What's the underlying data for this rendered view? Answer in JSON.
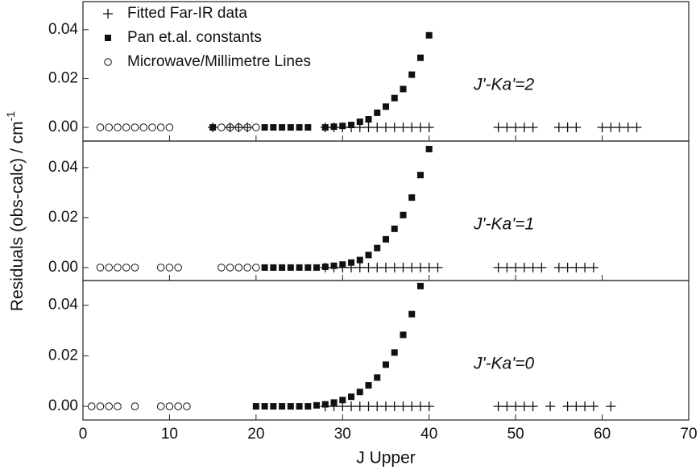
{
  "chart_data": [
    {
      "type": "scatter",
      "annotation": "J'-Ka'=2",
      "xlim": [
        0,
        70
      ],
      "xticks": [
        0,
        10,
        20,
        30,
        40,
        50,
        60,
        70
      ],
      "ylim": [
        -0.0056,
        0.0515
      ],
      "yticks": [
        {
          "value": 0,
          "label": "0.00"
        },
        {
          "value": 0.02,
          "label": "0.02"
        },
        {
          "value": 0.04,
          "label": "0.04"
        }
      ],
      "series": [
        {
          "name": "Fitted Far-IR data",
          "marker": "plus",
          "color": "#111111",
          "x": [
            15,
            17,
            18,
            19,
            28,
            29,
            30,
            31,
            32,
            33,
            34,
            35,
            36,
            37,
            38,
            39,
            40,
            48,
            49,
            50,
            51,
            52,
            55,
            56,
            57,
            60,
            61,
            62,
            63,
            64
          ],
          "values": [
            0,
            0,
            0,
            0,
            0,
            0,
            0,
            0,
            0,
            0,
            0,
            0,
            0,
            0,
            0,
            0,
            0,
            0,
            0,
            0,
            0,
            0,
            0,
            0,
            0,
            0,
            0,
            0,
            0,
            0
          ]
        },
        {
          "name": " Pan et.al. constants",
          "marker": "square",
          "color": "#111111",
          "x": [
            15,
            21,
            22,
            23,
            24,
            25,
            26,
            28,
            29,
            30,
            31,
            32,
            33,
            34,
            35,
            36,
            37,
            38,
            39,
            40
          ],
          "values": [
            0,
            0,
            0,
            0,
            0,
            0,
            0,
            0,
            0.0003,
            0.0006,
            0.001,
            0.0023,
            0.0033,
            0.006,
            0.0085,
            0.012,
            0.0157,
            0.0216,
            0.0285,
            0.0377
          ]
        },
        {
          "name": "Microwave/Millimetre Lines",
          "marker": "circle",
          "color": "#111111",
          "x": [
            2,
            3,
            4,
            5,
            6,
            7,
            8,
            9,
            10,
            16,
            17,
            18,
            19,
            20
          ],
          "values": [
            0,
            0,
            0,
            0,
            0,
            0,
            0,
            0,
            0,
            0,
            0,
            0,
            0,
            0
          ]
        }
      ]
    },
    {
      "type": "scatter",
      "annotation": "J'-Ka'=1",
      "xlim": [
        0,
        70
      ],
      "xticks": [
        0,
        10,
        20,
        30,
        40,
        50,
        60,
        70
      ],
      "ylim": [
        -0.0052,
        0.0506
      ],
      "yticks": [
        {
          "value": 0,
          "label": "0.00"
        },
        {
          "value": 0.02,
          "label": "0.02"
        },
        {
          "value": 0.04,
          "label": "0.04"
        }
      ],
      "series": [
        {
          "marker": "plus",
          "color": "#111111",
          "x": [
            28,
            29,
            30,
            31,
            32,
            33,
            34,
            35,
            36,
            37,
            38,
            39,
            40,
            41,
            48,
            49,
            50,
            51,
            52,
            53,
            55,
            56,
            57,
            58,
            59
          ],
          "values": [
            0,
            0,
            0,
            0,
            0,
            0,
            0,
            0,
            0,
            0,
            0,
            0,
            0,
            0,
            0,
            0,
            0,
            0,
            0,
            0,
            0,
            0,
            0,
            0,
            0
          ]
        },
        {
          "marker": "square",
          "color": "#111111",
          "x": [
            21,
            22,
            23,
            24,
            25,
            26,
            27,
            28,
            29,
            30,
            31,
            32,
            33,
            34,
            35,
            36,
            37,
            38,
            39,
            40
          ],
          "values": [
            0,
            0,
            0,
            0,
            0,
            0,
            0,
            0.0003,
            0.0007,
            0.0012,
            0.002,
            0.003,
            0.005,
            0.0078,
            0.0113,
            0.0155,
            0.021,
            0.028,
            0.037,
            0.0474
          ]
        },
        {
          "marker": "circle",
          "color": "#111111",
          "x": [
            2,
            3,
            4,
            5,
            6,
            9,
            10,
            11,
            16,
            17,
            18,
            19,
            20
          ],
          "values": [
            0,
            0,
            0,
            0,
            0,
            0,
            0,
            0,
            0,
            0,
            0,
            0,
            0
          ]
        }
      ]
    },
    {
      "type": "scatter",
      "annotation": "J'-Ka'=0",
      "xlabel": "J Upper",
      "xlim": [
        0,
        70
      ],
      "xticks": [
        0,
        10,
        20,
        30,
        40,
        50,
        60,
        70
      ],
      "ylim": [
        -0.0054,
        0.0498
      ],
      "yticks": [
        {
          "value": 0,
          "label": "0.00"
        },
        {
          "value": 0.02,
          "label": "0.02"
        },
        {
          "value": 0.04,
          "label": "0.04"
        }
      ],
      "series": [
        {
          "marker": "plus",
          "color": "#111111",
          "x": [
            28,
            29,
            30,
            31,
            32,
            33,
            34,
            35,
            36,
            37,
            38,
            39,
            40,
            48,
            49,
            50,
            51,
            52,
            54,
            56,
            57,
            58,
            59,
            61
          ],
          "values": [
            0,
            0,
            0,
            0,
            0,
            0,
            0,
            0,
            0,
            0,
            0,
            0,
            0,
            0,
            0,
            0,
            0,
            0,
            0,
            0,
            0,
            0,
            0,
            0
          ]
        },
        {
          "marker": "square",
          "color": "#111111",
          "x": [
            20,
            21,
            22,
            23,
            24,
            25,
            26,
            27,
            28,
            29,
            30,
            31,
            32,
            33,
            34,
            35,
            36,
            37,
            38,
            39
          ],
          "values": [
            0,
            0,
            0,
            0,
            0,
            0,
            0,
            0.0004,
            0.0008,
            0.0015,
            0.0025,
            0.0038,
            0.0057,
            0.0083,
            0.0114,
            0.0165,
            0.0213,
            0.0283,
            0.0365,
            0.0476
          ]
        },
        {
          "marker": "circle",
          "color": "#111111",
          "x": [
            1,
            2,
            3,
            4,
            6,
            9,
            10,
            11,
            12
          ],
          "values": [
            0,
            0,
            0,
            0,
            0,
            0,
            0,
            0,
            0
          ]
        }
      ]
    }
  ],
  "ylabel": "Residuals (obs-calc) / cm",
  "ylabel_sup": "-1"
}
